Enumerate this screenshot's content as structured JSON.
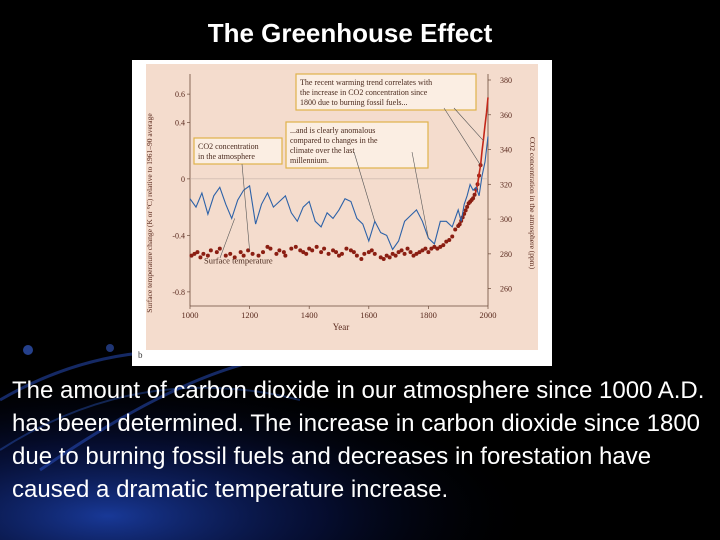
{
  "slide": {
    "title": "The Greenhouse Effect",
    "caption": "The amount of carbon dioxide in our atmosphere since 1000 A.D. has been determined. The increase in carbon dioxide since 1800 due to burning fossil fuels and decreases in forestation have caused a dramatic temperature increase.",
    "colors": {
      "background": "#000000",
      "text": "#ffffff",
      "accent_swirl": "#1a3fb0"
    }
  },
  "chart_data": {
    "type": "line",
    "panel_label": "b",
    "xlabel": "Year",
    "ylabel_left": "Surface temperature change (K or °C) relative to 1961–90 average",
    "ylabel_right": "CO2 concentration in the atmosphere (ppm)",
    "x_ticks": [
      1000,
      1200,
      1400,
      1600,
      1800,
      2000
    ],
    "y_left_ticks": [
      "0.6",
      "0.4",
      "0",
      "-0.4",
      "-0.8"
    ],
    "y_right_ticks": [
      "380",
      "360",
      "340",
      "320",
      "300",
      "280",
      "260"
    ],
    "xlim": [
      1000,
      2000
    ],
    "ylim_left": [
      -0.9,
      0.7
    ],
    "ylim_right": [
      250,
      380
    ],
    "plot_background": "#f4dccd",
    "annotations": {
      "top": "The recent warming trend correlates with the increase in CO2 concentration since 1800 due to burning fossil fuels...",
      "middle": "...and is clearly anomalous compared to changes in the climate over the last millennium.",
      "co2_label": "CO2 concentration in the atmosphere",
      "temp_label": "Surface temperature"
    },
    "series": [
      {
        "name": "CO2 concentration in the atmosphere",
        "axis": "right",
        "color": "#8b1e12",
        "style": "points",
        "x": [
          1005,
          1015,
          1025,
          1035,
          1045,
          1060,
          1070,
          1090,
          1100,
          1120,
          1135,
          1150,
          1170,
          1180,
          1195,
          1210,
          1230,
          1245,
          1260,
          1270,
          1290,
          1300,
          1315,
          1320,
          1340,
          1355,
          1370,
          1380,
          1390,
          1400,
          1410,
          1425,
          1440,
          1450,
          1465,
          1480,
          1490,
          1500,
          1510,
          1525,
          1540,
          1550,
          1560,
          1575,
          1585,
          1600,
          1610,
          1620,
          1640,
          1650,
          1660,
          1670,
          1680,
          1690,
          1700,
          1710,
          1720,
          1730,
          1740,
          1750,
          1760,
          1770,
          1780,
          1790,
          1800,
          1810,
          1820,
          1830,
          1840,
          1850,
          1860,
          1870,
          1880,
          1890,
          1900,
          1905,
          1910,
          1915,
          1920,
          1925,
          1930,
          1935,
          1940,
          1945,
          1950,
          1955,
          1960,
          1965,
          1970,
          1975
        ],
        "y": [
          279,
          280,
          281,
          278,
          280,
          279,
          282,
          281,
          283,
          279,
          280,
          278,
          281,
          279,
          282,
          280,
          279,
          281,
          284,
          283,
          280,
          282,
          281,
          279,
          283,
          284,
          282,
          281,
          280,
          283,
          282,
          284,
          281,
          283,
          280,
          282,
          281,
          279,
          280,
          283,
          282,
          281,
          279,
          277,
          280,
          281,
          282,
          280,
          278,
          277,
          279,
          278,
          280,
          279,
          281,
          282,
          280,
          283,
          281,
          279,
          280,
          281,
          282,
          283,
          281,
          283,
          284,
          283,
          284,
          285,
          287,
          288,
          290,
          294,
          296,
          297,
          299,
          301,
          303,
          305,
          307,
          309,
          310,
          311,
          312,
          314,
          317,
          320,
          325,
          331
        ]
      },
      {
        "name": "CO2 instrumental",
        "axis": "right",
        "color": "#c3271a",
        "style": "line",
        "x": [
          1958,
          1965,
          1970,
          1975,
          1980,
          1985,
          1990,
          1995,
          2000
        ],
        "y": [
          315,
          320,
          326,
          331,
          339,
          346,
          354,
          361,
          370
        ]
      },
      {
        "name": "Surface temperature",
        "axis": "left",
        "color": "#2d62a8",
        "style": "line",
        "x": [
          1000,
          1020,
          1040,
          1060,
          1080,
          1100,
          1120,
          1140,
          1160,
          1180,
          1200,
          1220,
          1240,
          1260,
          1280,
          1300,
          1320,
          1340,
          1360,
          1380,
          1400,
          1420,
          1440,
          1460,
          1480,
          1500,
          1520,
          1540,
          1560,
          1580,
          1600,
          1620,
          1640,
          1660,
          1680,
          1700,
          1720,
          1740,
          1760,
          1780,
          1800,
          1820,
          1840,
          1860,
          1880,
          1900,
          1910,
          1920,
          1930,
          1940,
          1950,
          1960,
          1970,
          1980,
          1990,
          2000
        ],
        "y": [
          -0.14,
          -0.2,
          -0.1,
          -0.25,
          -0.12,
          -0.06,
          -0.18,
          -0.28,
          -0.15,
          -0.08,
          -0.05,
          -0.32,
          -0.18,
          -0.1,
          -0.2,
          -0.16,
          -0.12,
          -0.24,
          -0.3,
          -0.2,
          -0.16,
          -0.3,
          -0.34,
          -0.24,
          -0.28,
          -0.22,
          -0.14,
          -0.16,
          -0.28,
          -0.32,
          -0.44,
          -0.3,
          -0.38,
          -0.4,
          -0.5,
          -0.44,
          -0.3,
          -0.26,
          -0.22,
          -0.3,
          -0.42,
          -0.46,
          -0.3,
          -0.3,
          -0.34,
          -0.22,
          -0.3,
          -0.18,
          -0.12,
          -0.04,
          -0.08,
          -0.06,
          -0.12,
          0.02,
          0.12,
          0.3
        ]
      }
    ]
  }
}
